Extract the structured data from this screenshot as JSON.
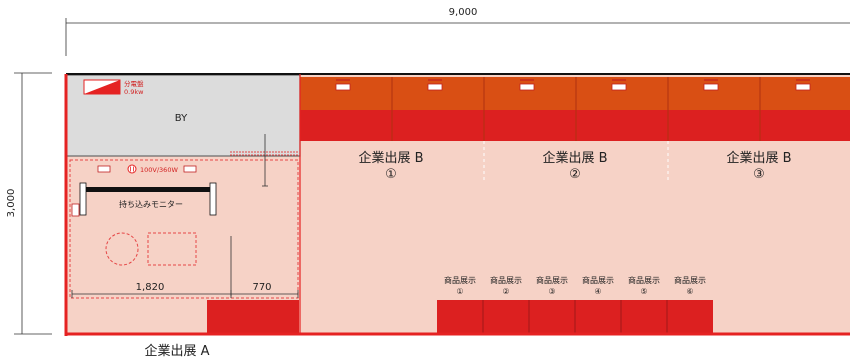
{
  "dimensions": {
    "total_width": "9,000",
    "total_depth": "3,000",
    "segment_left": "1,820",
    "segment_right": "770"
  },
  "labels": {
    "booth_by": "BY",
    "breaker_name": "分電盤",
    "breaker_spec": "0.9kw",
    "outlet_spec": "100V/360W",
    "monitor": "持ち込みモニター",
    "zone_a": "企業出展 A",
    "zone_b": [
      {
        "name": "企業出展 B",
        "number": "①"
      },
      {
        "name": "企業出展 B",
        "number": "②"
      },
      {
        "name": "企業出展 B",
        "number": "③"
      }
    ],
    "product_displays": [
      {
        "name": "商品展示",
        "number": "①"
      },
      {
        "name": "商品展示",
        "number": "②"
      },
      {
        "name": "商品展示",
        "number": "③"
      },
      {
        "name": "商品展示",
        "number": "④"
      },
      {
        "name": "商品展示",
        "number": "⑤"
      },
      {
        "name": "商品展示",
        "number": "⑥"
      }
    ]
  },
  "colors": {
    "floor": "#f6d2c6",
    "wall": "#e52222",
    "upper_panel": "#d94f14",
    "lower_panel": "#dc2020",
    "storage": "#dcdcdc",
    "dashed": "#e54545"
  }
}
